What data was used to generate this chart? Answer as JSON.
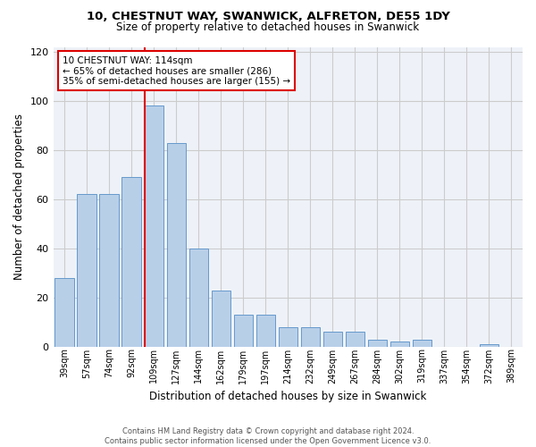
{
  "title": "10, CHESTNUT WAY, SWANWICK, ALFRETON, DE55 1DY",
  "subtitle": "Size of property relative to detached houses in Swanwick",
  "xlabel": "Distribution of detached houses by size in Swanwick",
  "ylabel": "Number of detached properties",
  "categories": [
    "39sqm",
    "57sqm",
    "74sqm",
    "92sqm",
    "109sqm",
    "127sqm",
    "144sqm",
    "162sqm",
    "179sqm",
    "197sqm",
    "214sqm",
    "232sqm",
    "249sqm",
    "267sqm",
    "284sqm",
    "302sqm",
    "319sqm",
    "337sqm",
    "354sqm",
    "372sqm",
    "389sqm"
  ],
  "values": [
    28,
    62,
    62,
    69,
    98,
    83,
    40,
    23,
    13,
    13,
    8,
    8,
    6,
    6,
    3,
    2,
    3,
    0,
    0,
    1,
    0
  ],
  "bar_color": "#b8cfe8",
  "bar_edge_color": "#6699cc",
  "bar_linewidth": 0.7,
  "red_line_bin_index": 4,
  "annotation_text_line1": "10 CHESTNUT WAY: 114sqm",
  "annotation_text_line2": "← 65% of detached houses are smaller (286)",
  "annotation_text_line3": "35% of semi-detached houses are larger (155) →",
  "red_line_color": "#dd0000",
  "annotation_box_edge_color": "#dd0000",
  "ylim": [
    0,
    122
  ],
  "yticks": [
    0,
    20,
    40,
    60,
    80,
    100,
    120
  ],
  "grid_color": "#cccccc",
  "background_color": "#eef2f8",
  "footer_line1": "Contains HM Land Registry data © Crown copyright and database right 2024.",
  "footer_line2": "Contains public sector information licensed under the Open Government Licence v3.0."
}
